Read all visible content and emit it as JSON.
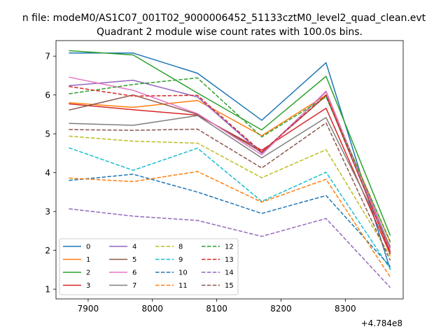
{
  "figure": {
    "suptitle": "n file: modeM0/AS1C07_001T02_9000006452_51133cztM0_level2_quad_clean.evt"
  },
  "chart_data": {
    "type": "line",
    "title": "Quadrant 2 module wise count rates with 100.0s bins.",
    "xlabel": "",
    "ylabel": "",
    "x_offset_label": "+4.784e8",
    "x_offset": 478400000,
    "x": [
      7870,
      7970,
      8070,
      8170,
      8270,
      8370
    ],
    "xlim": [
      7850,
      8390
    ],
    "ylim": [
      0.75,
      7.4
    ],
    "xticks": [
      7900,
      8000,
      8100,
      8200,
      8300
    ],
    "yticks": [
      1,
      2,
      3,
      4,
      5,
      6,
      7
    ],
    "grid": false,
    "legend": {
      "placement": "lower-left",
      "columns": 4
    },
    "series": [
      {
        "name": "0",
        "color": "#1f77b4",
        "dash": "solid",
        "values": [
          7.08,
          7.08,
          6.56,
          5.35,
          6.83,
          1.5
        ]
      },
      {
        "name": "1",
        "color": "#ff7f0e",
        "dash": "solid",
        "values": [
          5.8,
          5.68,
          5.86,
          4.95,
          6.0,
          2.2
        ]
      },
      {
        "name": "2",
        "color": "#2ca02c",
        "dash": "solid",
        "values": [
          7.14,
          7.03,
          6.05,
          5.1,
          6.48,
          2.38
        ]
      },
      {
        "name": "3",
        "color": "#d62728",
        "dash": "solid",
        "values": [
          5.77,
          5.62,
          5.48,
          4.58,
          5.66,
          1.9
        ]
      },
      {
        "name": "4",
        "color": "#9467bd",
        "dash": "solid",
        "values": [
          6.24,
          6.38,
          5.95,
          4.5,
          6.08,
          2.06
        ]
      },
      {
        "name": "5",
        "color": "#8c564b",
        "dash": "solid",
        "values": [
          5.61,
          6.0,
          5.5,
          4.53,
          5.98,
          1.95
        ]
      },
      {
        "name": "6",
        "color": "#e377c2",
        "dash": "solid",
        "values": [
          6.46,
          6.12,
          5.52,
          4.46,
          6.1,
          2.0
        ]
      },
      {
        "name": "7",
        "color": "#7f7f7f",
        "dash": "solid",
        "values": [
          5.27,
          5.22,
          5.47,
          4.38,
          5.42,
          2.1
        ]
      },
      {
        "name": "8",
        "color": "#bcbd22",
        "dash": "dashed",
        "values": [
          4.94,
          4.81,
          4.76,
          3.87,
          4.59,
          1.85
        ]
      },
      {
        "name": "9",
        "color": "#17becf",
        "dash": "dashed",
        "values": [
          4.64,
          4.06,
          4.63,
          3.26,
          4.01,
          1.52
        ]
      },
      {
        "name": "10",
        "color": "#1f77b4",
        "dash": "dashed",
        "values": [
          3.8,
          3.96,
          3.5,
          2.95,
          3.41,
          1.58
        ]
      },
      {
        "name": "11",
        "color": "#ff7f0e",
        "dash": "dashed",
        "values": [
          3.86,
          3.77,
          4.03,
          3.24,
          3.83,
          1.31
        ]
      },
      {
        "name": "12",
        "color": "#2ca02c",
        "dash": "dashed",
        "values": [
          6.03,
          6.27,
          6.44,
          4.92,
          5.95,
          2.22
        ]
      },
      {
        "name": "13",
        "color": "#d62728",
        "dash": "dashed",
        "values": [
          6.22,
          5.97,
          5.99,
          4.53,
          6.0,
          1.95
        ]
      },
      {
        "name": "14",
        "color": "#9467bd",
        "dash": "dashed",
        "values": [
          3.07,
          2.88,
          2.77,
          2.36,
          2.82,
          1.04
        ]
      },
      {
        "name": "15",
        "color": "#8c564b",
        "dash": "dashed",
        "values": [
          5.11,
          5.09,
          5.12,
          4.12,
          5.28,
          1.74
        ]
      }
    ]
  }
}
